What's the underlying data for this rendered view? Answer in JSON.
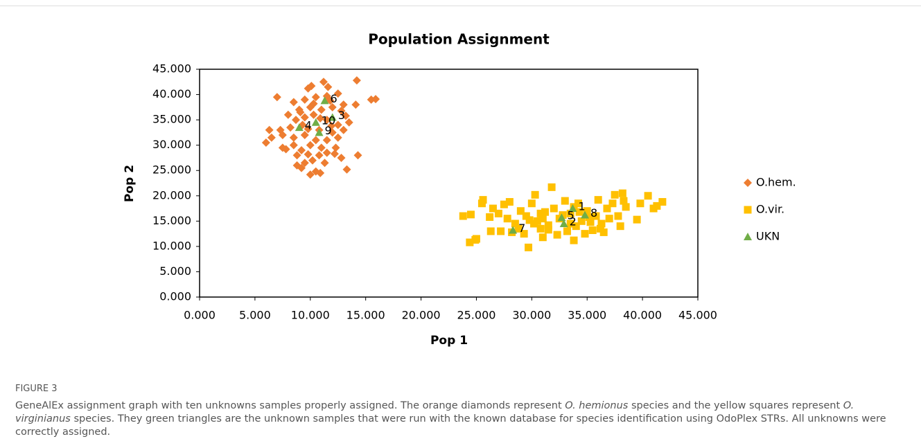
{
  "chart_data": {
    "type": "scatter",
    "title": "Population Assignment",
    "xlabel": "Pop 1",
    "ylabel": "Pop 2",
    "xlim": [
      0,
      45
    ],
    "ylim": [
      0,
      45
    ],
    "xticks": [
      {
        "value": 0,
        "label": "0.000"
      },
      {
        "value": 5,
        "label": "5.000"
      },
      {
        "value": 10,
        "label": "10.000"
      },
      {
        "value": 15,
        "label": "15.000"
      },
      {
        "value": 20,
        "label": "20.000"
      },
      {
        "value": 25,
        "label": "25.000"
      },
      {
        "value": 30,
        "label": "30.000"
      },
      {
        "value": 35,
        "label": "35.000"
      },
      {
        "value": 40,
        "label": "40.000"
      },
      {
        "value": 45,
        "label": "45.000"
      }
    ],
    "yticks": [
      {
        "value": 0,
        "label": "0.000"
      },
      {
        "value": 5,
        "label": "5.000"
      },
      {
        "value": 10,
        "label": "10.000"
      },
      {
        "value": 15,
        "label": "15.000"
      },
      {
        "value": 20,
        "label": "20.000"
      },
      {
        "value": 25,
        "label": "25.000"
      },
      {
        "value": 30,
        "label": "30.000"
      },
      {
        "value": 35,
        "label": "35.000"
      },
      {
        "value": 40,
        "label": "40.000"
      },
      {
        "value": 45,
        "label": "45.000"
      }
    ],
    "legend": "right",
    "series": [
      {
        "name": "O.hem.",
        "color": "#ED7D31",
        "marker": "diamond",
        "x": [
          10.1,
          11.2,
          14.2,
          7,
          9.8,
          11.6,
          15.5,
          15.9,
          12.5,
          8.5,
          9.5,
          10.5,
          11.5,
          13,
          14.1,
          8,
          9,
          10,
          11,
          12,
          12.8,
          8.7,
          9.5,
          10.3,
          11.5,
          12.5,
          13.5,
          7.3,
          8.2,
          9.3,
          10.8,
          12,
          13,
          6.3,
          6.5,
          6,
          7.5,
          8.5,
          9.5,
          10.5,
          11.5,
          12.5,
          7.5,
          8.5,
          9.2,
          10,
          11,
          12.3,
          8.8,
          9.8,
          10.8,
          11.5,
          12.2,
          14.3,
          8.8,
          9.5,
          10.2,
          11.3,
          12.8,
          9.2,
          10,
          10.5,
          10.9,
          13.3,
          7.8,
          9.1,
          10.9,
          11.9,
          9.8,
          10.3,
          11.8,
          13.2
        ],
        "y": [
          41.7,
          42.5,
          42.8,
          39.5,
          41.2,
          41.5,
          39,
          39.1,
          40.2,
          38.5,
          39,
          39.5,
          39.7,
          38,
          38,
          36,
          37,
          37.5,
          37,
          37.5,
          36.8,
          35,
          35.5,
          36,
          35,
          34,
          34.5,
          33,
          33.5,
          34,
          33,
          32.5,
          33,
          33,
          31.5,
          30.5,
          32,
          31.5,
          32,
          31,
          31,
          31.5,
          29.5,
          30,
          29,
          30,
          29.5,
          29.5,
          28,
          28.2,
          28,
          28.5,
          28.3,
          28,
          26,
          26.5,
          27,
          26.5,
          27.5,
          25.5,
          24.2,
          24.8,
          24.5,
          25.2,
          29.2,
          36.5,
          35.3,
          33.8,
          33.2,
          38.2,
          38.8,
          35.8
        ]
      },
      {
        "name": "O.vir.",
        "color": "#FFC000",
        "marker": "square",
        "x": [
          23.8,
          24.5,
          24.4,
          25,
          24.9,
          25.5,
          25.6,
          26.5,
          26.3,
          27,
          27.5,
          28,
          27.8,
          28.5,
          28.2,
          29,
          29.5,
          29.3,
          29.7,
          30,
          30.3,
          30.5,
          30.8,
          31,
          31.2,
          31.5,
          31.8,
          32,
          32.3,
          32.5,
          33,
          33.2,
          33.5,
          33.8,
          34,
          34.2,
          34.5,
          34.8,
          35,
          35.3,
          35.5,
          35.8,
          36,
          36.3,
          36.5,
          36.8,
          37,
          37.3,
          37.5,
          37.8,
          38,
          38.2,
          38.5,
          38.3,
          39.5,
          39.8,
          40.5,
          41,
          41.3,
          41.8,
          30.2,
          31.5,
          32.8,
          33.5,
          34.3,
          35.2,
          29.8,
          30.8,
          28.8,
          36.2,
          33.8,
          31,
          27.2,
          26.2
        ],
        "y": [
          16,
          16.3,
          10.8,
          11.5,
          11.3,
          18.5,
          19.2,
          17.5,
          13,
          16.5,
          18.3,
          18.8,
          15.5,
          14.5,
          12.8,
          17,
          16,
          12.5,
          9.8,
          18.5,
          20.2,
          15,
          13.5,
          11.8,
          16.8,
          14.2,
          21.7,
          17.5,
          12.3,
          15.5,
          19,
          13,
          16.5,
          11.2,
          14,
          18.5,
          15,
          12.5,
          17,
          14.8,
          13.2,
          16,
          19.2,
          14.5,
          12.8,
          17.5,
          15.5,
          18.5,
          20.2,
          16,
          14,
          20.5,
          17.8,
          19,
          15.3,
          18.5,
          20,
          17.5,
          18,
          18.8,
          14.5,
          13.3,
          16.2,
          14.5,
          16.8,
          15.8,
          15.2,
          16.5,
          13.5,
          13.5,
          17.8,
          15.5,
          13,
          15.8
        ]
      },
      {
        "name": "UKN",
        "color": "#70AD47",
        "marker": "triangle",
        "x": [
          33.7,
          32.9,
          12.0,
          9.0,
          32.7,
          11.3,
          28.3,
          34.8,
          10.8,
          10.5
        ],
        "y": [
          17.5,
          14.5,
          35.5,
          33.5,
          15.7,
          38.8,
          13.2,
          16.2,
          32.5,
          34.5
        ],
        "point_labels": [
          "1",
          "2",
          "3",
          "4",
          "5",
          "6",
          "7",
          "8",
          "9",
          "10"
        ]
      }
    ]
  },
  "caption": {
    "label": "FIGURE 3",
    "parts": [
      "GeneAlEx assignment graph with ten unknowns samples properly assigned. The orange diamonds represent ",
      "O. hemionus",
      " species and the yellow squares represent ",
      "O. virginianus",
      " species. They green triangles are the unknown samples that were run with the known database for species identification using OdoPlex STRs. All unknowns were correctly assigned."
    ]
  }
}
